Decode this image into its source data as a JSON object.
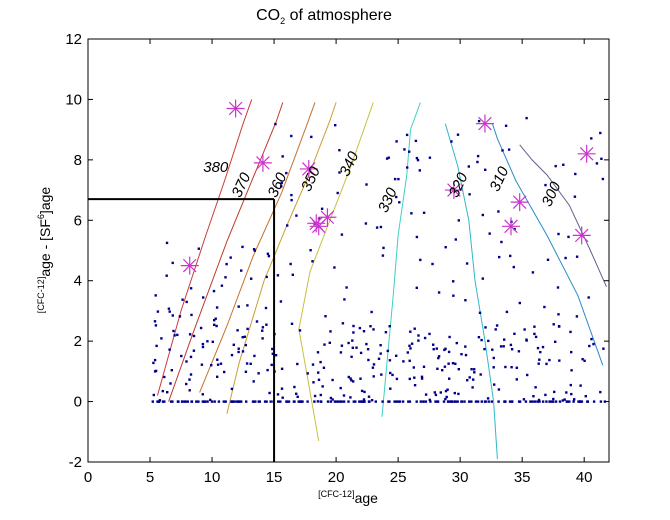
{
  "chart_data": {
    "type": "scatter",
    "title": {
      "pre": "CO",
      "sub": "2",
      "post": " of atmosphere"
    },
    "xlabel": {
      "pre": "[CFC-12]",
      "post": "age"
    },
    "ylabel": {
      "p1": "[CFC-12]",
      "p2": "age - [SF",
      "sub": "6",
      "p3": "]age"
    },
    "xlim": [
      0,
      42
    ],
    "ylim": [
      -2,
      12
    ],
    "xticks": [
      0,
      5,
      10,
      15,
      20,
      25,
      30,
      35,
      40
    ],
    "yticks": [
      -2,
      0,
      2,
      4,
      6,
      8,
      10,
      12
    ],
    "grid": false,
    "colors": {
      "points": "#00008b",
      "stars": "#cc33cc",
      "box": "#000000"
    },
    "box": {
      "x": 15,
      "y": 6.7
    },
    "contours": [
      {
        "label": "380",
        "color": "#cc3a3a",
        "label_pos": [
          10.3,
          7.6
        ],
        "points": [
          [
            5.6,
            0.2
          ],
          [
            7.5,
            3.0
          ],
          [
            9.5,
            5.5
          ],
          [
            11,
            7.3
          ],
          [
            12.5,
            9.2
          ],
          [
            13.2,
            10.0
          ]
        ]
      },
      {
        "label": "370",
        "color": "#c0392b",
        "label_pos": [
          12.7,
          7.1
        ],
        "points": [
          [
            6.5,
            0
          ],
          [
            8.5,
            2.3
          ],
          [
            11.2,
            5.3
          ],
          [
            13.5,
            7.6
          ],
          [
            15.2,
            9.3
          ],
          [
            15.7,
            9.9
          ]
        ]
      },
      {
        "label": "360",
        "color": "#c8702a",
        "label_pos": [
          15.6,
          7.1
        ],
        "points": [
          [
            9.0,
            0.3
          ],
          [
            11.2,
            2.5
          ],
          [
            13.3,
            4.8
          ],
          [
            15.6,
            6.9
          ],
          [
            17.5,
            9.0
          ],
          [
            18.3,
            9.9
          ]
        ]
      },
      {
        "label": "350",
        "color": "#c8a030",
        "label_pos": [
          18.3,
          7.3
        ],
        "points": [
          [
            11.2,
            -0.4
          ],
          [
            12.2,
            1.3
          ],
          [
            14.2,
            4.0
          ],
          [
            16.0,
            5.8
          ],
          [
            17.8,
            7.5
          ],
          [
            19.5,
            9.3
          ],
          [
            20.0,
            9.9
          ]
        ]
      },
      {
        "label": "340",
        "color": "#c8c040",
        "label_pos": [
          21.4,
          7.8
        ],
        "points": [
          [
            18.6,
            -1.3
          ],
          [
            17.0,
            2.4
          ],
          [
            17.9,
            4.3
          ],
          [
            19.5,
            6.0
          ],
          [
            21.2,
            7.8
          ],
          [
            23.0,
            9.9
          ]
        ]
      },
      {
        "label": "330",
        "color": "#40d0c0",
        "label_pos": [
          24.5,
          6.6
        ],
        "points": [
          [
            23.7,
            -0.5
          ],
          [
            24.1,
            1.3
          ],
          [
            24.6,
            3.5
          ],
          [
            25.0,
            5.5
          ],
          [
            25.7,
            7.5
          ],
          [
            26.0,
            9.0
          ],
          [
            26.8,
            9.9
          ]
        ]
      },
      {
        "label": "320",
        "color": "#30b8c8",
        "label_pos": [
          30.2,
          7.1
        ],
        "points": [
          [
            33.0,
            -1.9
          ],
          [
            32.7,
            0
          ],
          [
            32.0,
            2.0
          ],
          [
            31.2,
            4.0
          ],
          [
            30.7,
            6.0
          ],
          [
            29.8,
            7.8
          ],
          [
            28.8,
            9.2
          ]
        ]
      },
      {
        "label": "310",
        "color": "#2a8ac8",
        "label_pos": [
          33.5,
          7.3
        ],
        "points": [
          [
            41.5,
            1.2
          ],
          [
            39.5,
            3.5
          ],
          [
            37.0,
            5.5
          ],
          [
            34.5,
            7.3
          ],
          [
            33.0,
            8.7
          ],
          [
            32.6,
            9.2
          ]
        ]
      },
      {
        "label": "300",
        "color": "#606090",
        "label_pos": [
          37.7,
          6.8
        ],
        "points": [
          [
            41.8,
            3.8
          ],
          [
            40.5,
            5.0
          ],
          [
            38.8,
            6.5
          ],
          [
            37.0,
            7.5
          ],
          [
            35.8,
            8.0
          ],
          [
            34.8,
            8.5
          ]
        ]
      }
    ],
    "stars": [
      {
        "x": 8.2,
        "y": 4.5
      },
      {
        "x": 11.9,
        "y": 9.7
      },
      {
        "x": 14.1,
        "y": 7.9
      },
      {
        "x": 17.8,
        "y": 7.7
      },
      {
        "x": 18.4,
        "y": 5.9
      },
      {
        "x": 19.3,
        "y": 6.1
      },
      {
        "x": 18.6,
        "y": 5.8
      },
      {
        "x": 29.5,
        "y": 7.0
      },
      {
        "x": 32.0,
        "y": 9.2
      },
      {
        "x": 34.1,
        "y": 5.8
      },
      {
        "x": 34.8,
        "y": 6.6
      },
      {
        "x": 39.8,
        "y": 5.5
      },
      {
        "x": 40.2,
        "y": 8.2
      }
    ]
  }
}
